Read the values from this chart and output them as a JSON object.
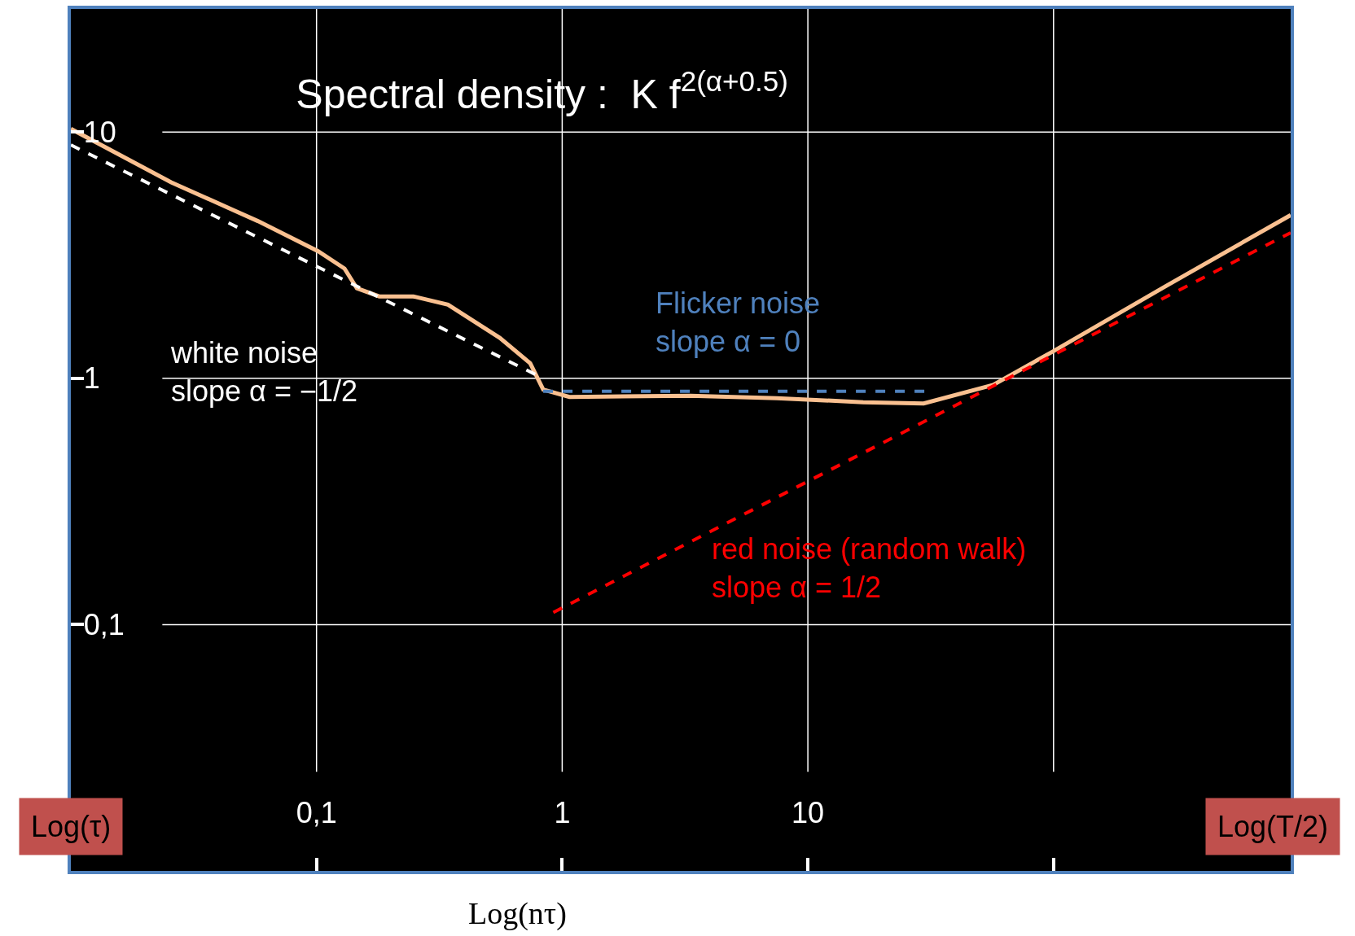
{
  "chart_data": {
    "type": "line",
    "title": "Spectral density :  K f$^{2(α+0.5)}$",
    "xlabel": "Log(nτ)",
    "log": "xy",
    "grid": true,
    "marker": "none",
    "xlim": [
      0.01,
      923
    ],
    "ylim": [
      0.01,
      31.6
    ],
    "xticks": [
      {
        "value": 0.1,
        "label": "0,1"
      },
      1,
      10,
      {
        "value": 100,
        "label": null
      }
    ],
    "yticks": [
      {
        "value": 0.1,
        "label": "0,1"
      },
      1,
      10
    ],
    "series": [
      {
        "color": "#fac090",
        "line_style": "solid",
        "x": [
          0.01,
          0.0256,
          0.0577,
          0.1016,
          0.13,
          0.146,
          0.18,
          0.248,
          0.343,
          0.557,
          0.741,
          0.837,
          1.07,
          3.32,
          7.47,
          16.8,
          29.6,
          56.8,
          100,
          287,
          923
        ],
        "values": [
          10.3,
          6.25,
          4.35,
          3.28,
          2.79,
          2.32,
          2.15,
          2.15,
          1.99,
          1.46,
          1.15,
          0.9,
          0.84,
          0.85,
          0.83,
          0.8,
          0.79,
          0.94,
          1.29,
          2.37,
          4.6
        ]
      },
      {
        "color": "#ffffff",
        "line_style": "dashed",
        "x": [
          0.01,
          0.837
        ],
        "values": [
          8.86,
          1
        ]
      },
      {
        "color": "#4f81bd",
        "line_style": "dashed",
        "x": [
          0.837,
          30.8
        ],
        "values": [
          0.885,
          0.885
        ]
      },
      {
        "color": "#ff0000",
        "line_style": "dashed",
        "x": [
          0.92,
          923
        ],
        "values": [
          0.112,
          3.9
        ]
      }
    ],
    "annotations": [
      "white noise\nslope α = −1/2",
      "Flicker noise\nslope α = 0",
      "red noise (random walk)\nslope α = 1/2",
      "Log(τ)",
      "Log(T/2)"
    ]
  }
}
